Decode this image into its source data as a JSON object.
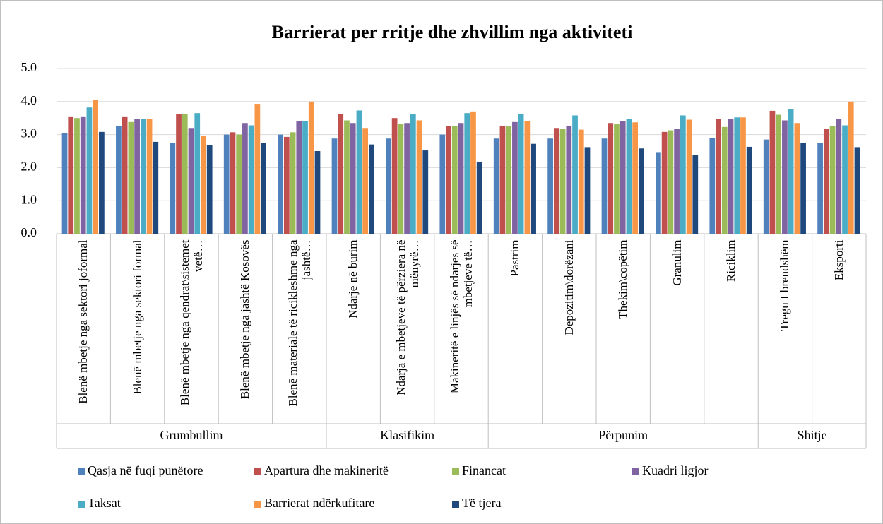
{
  "chart_data": {
    "type": "bar",
    "title": "Barrierat per rritje dhe zhvillim nga aktiviteti",
    "categories": [
      "Blenë  mbetje nga sektori joformal",
      "Blenë  mbetje nga sektori formal",
      "Blenë  mbetje nga qendrat\\sistemet vetë…",
      "Blenë  mbetje nga jashtë Kosovës",
      "Blenë  materiale të ricikleshme nga jashtë…",
      "Ndarje në  burim",
      "Ndarja e mbetjeve të përziera në mënyrë…",
      "Makineritë  e linjës së ndarjes së  mbetjeve të…",
      "Pastrim",
      "Depozitim\\dorëzani",
      "Thekim\\copëtim",
      "Granulim",
      "Riciklim",
      "Tregu I brendshëm",
      "Eksporti"
    ],
    "groups": [
      {
        "label": "Grumbullim",
        "span": 5
      },
      {
        "label": "Klasifikim",
        "span": 3
      },
      {
        "label": "Përpunim",
        "span": 5
      },
      {
        "label": "Shitje",
        "span": 2
      }
    ],
    "series": [
      {
        "name": "Qasja në  fuqi punëtore",
        "color": "#4f81bd",
        "values": [
          3.05,
          3.27,
          2.75,
          3.0,
          3.0,
          2.88,
          2.88,
          3.0,
          2.88,
          2.88,
          2.88,
          2.47,
          2.9,
          2.85,
          2.75
        ]
      },
      {
        "name": "Apartura dhe makineritë",
        "color": "#c0504d",
        "values": [
          3.55,
          3.55,
          3.63,
          3.07,
          2.93,
          3.63,
          3.5,
          3.25,
          3.27,
          3.2,
          3.35,
          3.08,
          3.47,
          3.72,
          3.17
        ]
      },
      {
        "name": "Financat",
        "color": "#9bbb59",
        "values": [
          3.5,
          3.38,
          3.63,
          3.0,
          3.07,
          3.43,
          3.33,
          3.25,
          3.25,
          3.17,
          3.33,
          3.13,
          3.23,
          3.6,
          3.27
        ]
      },
      {
        "name": "Kuadri ligjor",
        "color": "#8064a2",
        "values": [
          3.55,
          3.47,
          3.2,
          3.35,
          3.4,
          3.35,
          3.35,
          3.35,
          3.38,
          3.27,
          3.4,
          3.17,
          3.47,
          3.43,
          3.47
        ]
      },
      {
        "name": "Taksat",
        "color": "#4bacc6",
        "values": [
          3.82,
          3.47,
          3.65,
          3.28,
          3.4,
          3.73,
          3.63,
          3.65,
          3.63,
          3.58,
          3.47,
          3.58,
          3.52,
          3.78,
          3.28
        ]
      },
      {
        "name": "Barrierat ndërkufitare",
        "color": "#f79646",
        "values": [
          4.05,
          3.47,
          2.97,
          3.93,
          4.0,
          3.2,
          3.43,
          3.7,
          3.4,
          3.15,
          3.37,
          3.45,
          3.52,
          3.35,
          4.0
        ]
      },
      {
        "name": "Të  tjera",
        "color": "#1f497d",
        "values": [
          3.08,
          2.78,
          2.68,
          2.75,
          2.5,
          2.7,
          2.52,
          2.18,
          2.72,
          2.62,
          2.58,
          2.38,
          2.63,
          2.75,
          2.62
        ]
      }
    ],
    "ylim": [
      0,
      5
    ],
    "yticks": [
      {
        "value": 0,
        "label": "0.0"
      },
      {
        "value": 1,
        "label": "1.0"
      },
      {
        "value": 2,
        "label": "2.0"
      },
      {
        "value": 3,
        "label": "3.0"
      },
      {
        "value": 4,
        "label": "4.0"
      },
      {
        "value": 5,
        "label": "5.0"
      }
    ],
    "grid": true
  }
}
